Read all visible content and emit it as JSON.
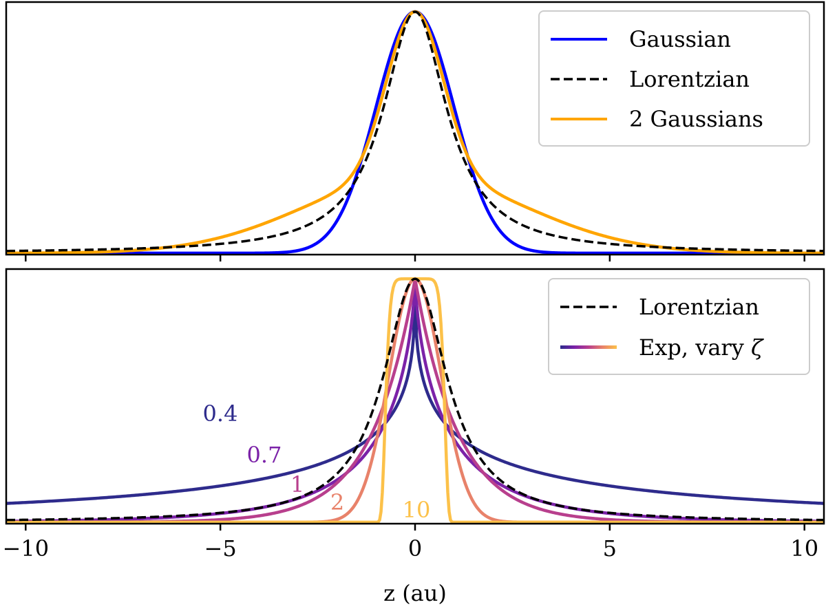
{
  "figure": {
    "xlabel": "z (au)",
    "x_ticks": [
      -10,
      -5,
      0,
      5,
      10
    ],
    "x_tick_labels": [
      "−10",
      "−5",
      "0",
      "5",
      "10"
    ]
  },
  "colors": {
    "gaussian": "#0000ff",
    "lorentzian": "#000000",
    "two_gaussians": "#ffa500",
    "zeta": {
      "0.4": "#2e2b8c",
      "0.7": "#7b22a8",
      "1": "#b83f8d",
      "2": "#e8826a",
      "10": "#fcc149"
    }
  },
  "chart_data": [
    {
      "type": "line",
      "panel": "top",
      "xlim": [
        -10.5,
        10.5
      ],
      "ylim": [
        -0.006,
        1.04
      ],
      "yticks": "none",
      "legend_position": "top-right",
      "series": [
        {
          "name": "Gaussian",
          "function": "gaussian",
          "sigma": 1.0,
          "style": "solid",
          "color": "#0000ff"
        },
        {
          "name": "Lorentzian",
          "function": "lorentzian",
          "gamma": 1.0,
          "style": "dashed",
          "color": "#000000"
        },
        {
          "name": "2 Gaussians",
          "function": "two_gaussians",
          "components": [
            {
              "amp": 0.68,
              "sigma": 0.72
            },
            {
              "amp": 0.32,
              "sigma": 2.8
            }
          ],
          "style": "solid",
          "color": "#ffa500"
        }
      ],
      "legend": [
        "Gaussian",
        "Lorentzian",
        "2 Gaussians"
      ]
    },
    {
      "type": "line",
      "panel": "bottom",
      "xlim": [
        -10.5,
        10.5
      ],
      "ylim": [
        -0.006,
        1.04
      ],
      "yticks": "none",
      "xlabel": "z (au)",
      "legend_position": "top-right",
      "legend": [
        "Lorentzian",
        "Exp, vary ζ"
      ],
      "legend_colormap": [
        "#2e2b8c",
        "#7b22a8",
        "#b83f8d",
        "#e8826a",
        "#fcc149"
      ],
      "series": [
        {
          "name": "Lorentzian",
          "function": "lorentzian",
          "gamma": 1.0,
          "style": "dashed",
          "color": "#000000"
        },
        {
          "name": "0.4",
          "zeta": 0.4,
          "function": "exp_zeta",
          "style": "solid",
          "color": "#2e2b8c"
        },
        {
          "name": "0.7",
          "zeta": 0.7,
          "function": "exp_zeta",
          "style": "solid",
          "color": "#7b22a8"
        },
        {
          "name": "1",
          "zeta": 1,
          "function": "exp_zeta",
          "style": "solid",
          "color": "#b83f8d"
        },
        {
          "name": "2",
          "zeta": 2,
          "function": "exp_zeta",
          "style": "solid",
          "color": "#e8826a"
        },
        {
          "name": "10",
          "zeta": 10,
          "function": "exp_zeta",
          "style": "solid",
          "color": "#fcc149"
        }
      ],
      "annotations": [
        {
          "text": "0.4",
          "x": -5.0,
          "y": 0.45,
          "color": "#2e2b8c"
        },
        {
          "text": "0.7",
          "x": -3.4,
          "y": 0.27,
          "color": "#7b22a8"
        },
        {
          "text": "1",
          "x": -3.0,
          "y": 0.16,
          "color": "#b83f8d"
        },
        {
          "text": "2",
          "x": -2.0,
          "y": 0.06,
          "color": "#e8826a"
        },
        {
          "text": "10",
          "x": 0.0,
          "y": 0.04,
          "color": "#fcc149"
        }
      ]
    }
  ]
}
